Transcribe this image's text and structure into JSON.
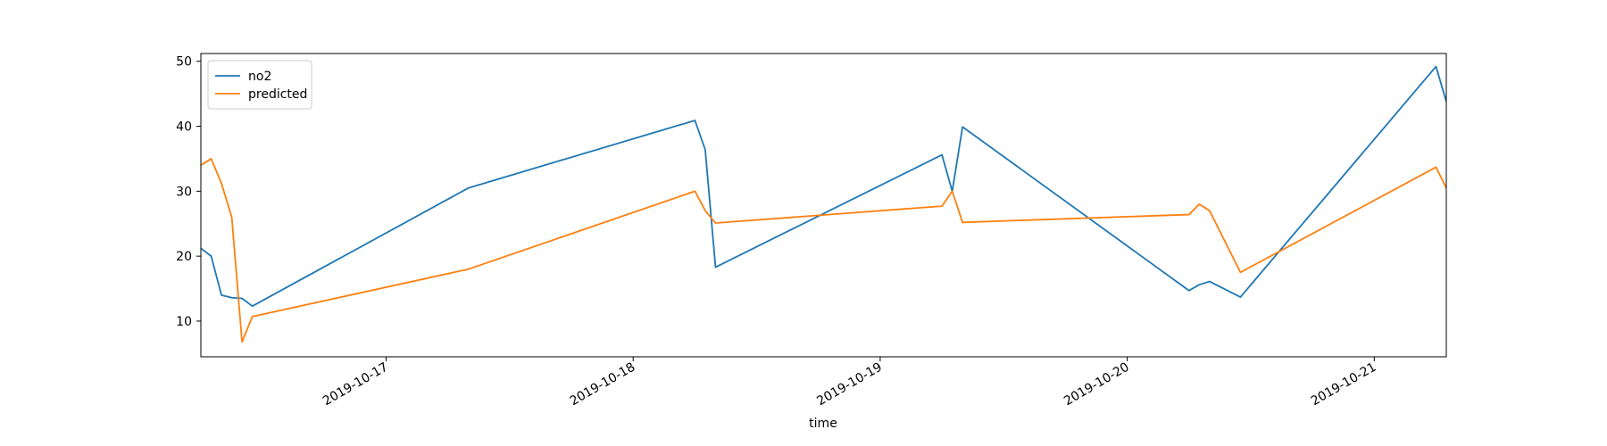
{
  "chart_data": {
    "type": "line",
    "title": "",
    "xlabel": "time",
    "ylabel": "",
    "x_type": "date",
    "xlim": [
      "2019-10-16T06:00",
      "2019-10-21T07:00"
    ],
    "ylim": [
      4.5,
      51.2
    ],
    "x_tick_labels": [
      "2019-10-17",
      "2019-10-18",
      "2019-10-19",
      "2019-10-20",
      "2019-10-21"
    ],
    "y_ticks": [
      10,
      20,
      30,
      40,
      50
    ],
    "grid": false,
    "legend_position": "top-left",
    "series": [
      {
        "name": "no2",
        "color": "#1f77b4",
        "points": [
          [
            "2019-10-16T06:00",
            21.2
          ],
          [
            "2019-10-16T07:00",
            20.0
          ],
          [
            "2019-10-16T08:00",
            14.0
          ],
          [
            "2019-10-16T09:00",
            13.6
          ],
          [
            "2019-10-16T10:00",
            13.5
          ],
          [
            "2019-10-16T11:00",
            12.3
          ],
          [
            "2019-10-17T08:00",
            30.5
          ],
          [
            "2019-10-18T06:00",
            40.9
          ],
          [
            "2019-10-18T07:00",
            36.4
          ],
          [
            "2019-10-18T08:00",
            18.3
          ],
          [
            "2019-10-19T06:00",
            35.6
          ],
          [
            "2019-10-19T07:00",
            30.0
          ],
          [
            "2019-10-19T08:00",
            39.9
          ],
          [
            "2019-10-20T06:00",
            14.7
          ],
          [
            "2019-10-20T07:00",
            15.6
          ],
          [
            "2019-10-20T08:00",
            16.1
          ],
          [
            "2019-10-20T11:00",
            13.7
          ],
          [
            "2019-10-21T06:00",
            49.2
          ],
          [
            "2019-10-21T07:00",
            43.8
          ]
        ]
      },
      {
        "name": "predicted",
        "color": "#ff7f0e",
        "points": [
          [
            "2019-10-16T06:00",
            34.0
          ],
          [
            "2019-10-16T07:00",
            35.0
          ],
          [
            "2019-10-16T08:00",
            31.2
          ],
          [
            "2019-10-16T09:00",
            26.0
          ],
          [
            "2019-10-16T10:00",
            6.8
          ],
          [
            "2019-10-16T11:00",
            10.7
          ],
          [
            "2019-10-17T08:00",
            18.0
          ],
          [
            "2019-10-18T06:00",
            30.0
          ],
          [
            "2019-10-18T07:00",
            27.0
          ],
          [
            "2019-10-18T08:00",
            25.1
          ],
          [
            "2019-10-19T06:00",
            27.7
          ],
          [
            "2019-10-19T07:00",
            30.0
          ],
          [
            "2019-10-19T08:00",
            25.2
          ],
          [
            "2019-10-20T06:00",
            26.4
          ],
          [
            "2019-10-20T07:00",
            28.0
          ],
          [
            "2019-10-20T08:00",
            27.0
          ],
          [
            "2019-10-20T11:00",
            17.5
          ],
          [
            "2019-10-21T06:00",
            33.7
          ],
          [
            "2019-10-21T07:00",
            30.5
          ]
        ]
      }
    ]
  }
}
